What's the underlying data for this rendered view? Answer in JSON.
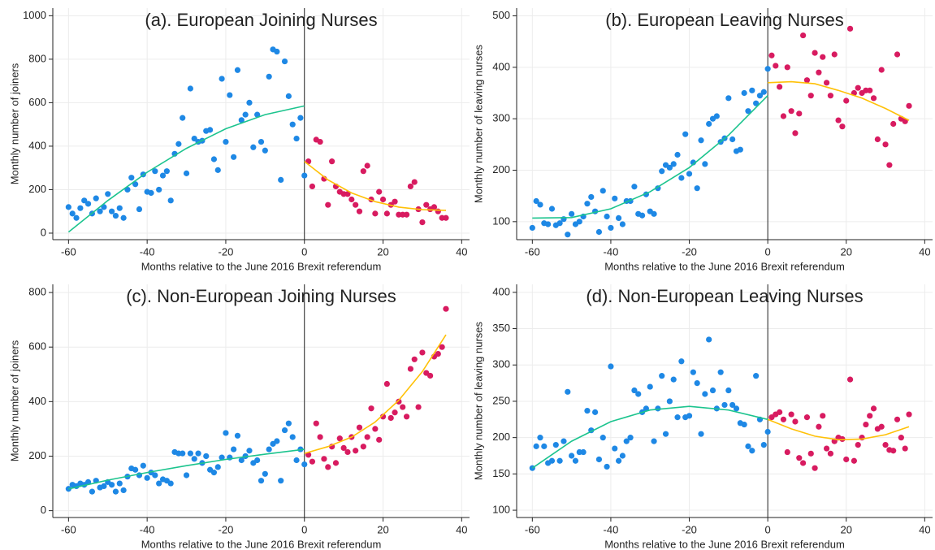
{
  "chart_data": [
    {
      "type": "scatter",
      "title": "(a). European Joining Nurses",
      "xlabel": "Months relative to the June 2016 Brexit referendum",
      "ylabel": "Monthly number of joiners",
      "xlim": [
        -64,
        42
      ],
      "xticks": [
        -60,
        -40,
        -20,
        0,
        20,
        40
      ],
      "ylim": [
        -30,
        1035
      ],
      "yticks": [
        0,
        200,
        400,
        600,
        800,
        1000
      ],
      "grid": true,
      "vline": 0,
      "vline_color": "#222",
      "series": [
        {
          "type": "scatter",
          "color": "#1e88e5",
          "x": [
            -60,
            -59,
            -58,
            -57,
            -56,
            -55,
            -54,
            -53,
            -52,
            -51,
            -50,
            -49,
            -48,
            -47,
            -46,
            -45,
            -44,
            -43,
            -42,
            -41,
            -40,
            -39,
            -38,
            -37,
            -36,
            -35,
            -34,
            -33,
            -32,
            -31,
            -30,
            -29,
            -28,
            -27,
            -26,
            -25,
            -24,
            -23,
            -22,
            -21,
            -20,
            -19,
            -18,
            -17,
            -16,
            -15,
            -14,
            -13,
            -12,
            -11,
            -10,
            -9,
            -8,
            -7,
            -6,
            -5,
            -4,
            -3,
            -2,
            -1,
            0
          ],
          "values": [
            120,
            90,
            70,
            115,
            150,
            135,
            90,
            160,
            100,
            120,
            180,
            100,
            80,
            115,
            70,
            200,
            255,
            225,
            110,
            270,
            190,
            185,
            285,
            200,
            265,
            285,
            150,
            365,
            410,
            530,
            275,
            665,
            435,
            420,
            425,
            470,
            475,
            340,
            290,
            710,
            420,
            635,
            350,
            750,
            520,
            545,
            600,
            395,
            545,
            420,
            380,
            720,
            845,
            835,
            245,
            790,
            630,
            500,
            435,
            530,
            265
          ]
        },
        {
          "type": "scatter",
          "color": "#d81b60",
          "x": [
            1,
            2,
            3,
            4,
            5,
            6,
            7,
            8,
            9,
            10,
            11,
            12,
            13,
            14,
            15,
            16,
            17,
            18,
            19,
            20,
            21,
            22,
            23,
            24,
            25,
            26,
            27,
            28,
            29,
            30,
            31,
            32,
            33,
            34,
            35,
            36
          ],
          "values": [
            330,
            215,
            430,
            420,
            250,
            130,
            330,
            215,
            190,
            180,
            180,
            155,
            130,
            100,
            285,
            310,
            155,
            90,
            190,
            155,
            90,
            130,
            145,
            85,
            85,
            85,
            215,
            235,
            110,
            50,
            130,
            110,
            120,
            100,
            70,
            70
          ]
        },
        {
          "type": "line",
          "color": "#1cc48e",
          "x": [
            -60,
            -50,
            -40,
            -30,
            -20,
            -10,
            0
          ],
          "values": [
            5,
            150,
            280,
            390,
            480,
            545,
            585
          ]
        },
        {
          "type": "line",
          "color": "#ffc107",
          "x": [
            0,
            6,
            12,
            18,
            24,
            30,
            36
          ],
          "values": [
            330,
            245,
            185,
            145,
            120,
            108,
            105
          ]
        }
      ]
    },
    {
      "type": "scatter",
      "title": "(b). European Leaving Nurses",
      "xlabel": "Months relative to the June 2016 Brexit referendum",
      "ylabel": "Monthly number of leaving nurses",
      "xlim": [
        -64,
        42
      ],
      "xticks": [
        -60,
        -40,
        -20,
        0,
        20,
        40
      ],
      "ylim": [
        65,
        515
      ],
      "yticks": [
        100,
        200,
        300,
        400,
        500
      ],
      "grid": true,
      "vline": 0,
      "vline_color": "#222",
      "series": [
        {
          "type": "scatter",
          "color": "#1e88e5",
          "x": [
            -60,
            -59,
            -58,
            -57,
            -56,
            -55,
            -54,
            -53,
            -52,
            -51,
            -50,
            -49,
            -48,
            -47,
            -46,
            -45,
            -44,
            -43,
            -42,
            -41,
            -40,
            -39,
            -38,
            -37,
            -36,
            -35,
            -34,
            -33,
            -32,
            -31,
            -30,
            -29,
            -28,
            -27,
            -26,
            -25,
            -24,
            -23,
            -22,
            -21,
            -20,
            -19,
            -18,
            -17,
            -16,
            -15,
            -14,
            -13,
            -12,
            -11,
            -10,
            -9,
            -8,
            -7,
            -6,
            -5,
            -4,
            -3,
            -2,
            -1,
            0
          ],
          "values": [
            88,
            140,
            133,
            97,
            95,
            125,
            93,
            97,
            105,
            75,
            115,
            95,
            100,
            110,
            135,
            148,
            120,
            80,
            160,
            110,
            88,
            145,
            107,
            95,
            140,
            140,
            168,
            115,
            112,
            153,
            120,
            115,
            165,
            198,
            210,
            205,
            212,
            230,
            185,
            270,
            193,
            215,
            165,
            258,
            212,
            290,
            300,
            305,
            255,
            262,
            340,
            260,
            237,
            240,
            350,
            315,
            355,
            330,
            345,
            352,
            397
          ]
        },
        {
          "type": "scatter",
          "color": "#d81b60",
          "x": [
            1,
            2,
            3,
            4,
            5,
            6,
            7,
            8,
            9,
            10,
            11,
            12,
            13,
            14,
            15,
            16,
            17,
            18,
            19,
            20,
            21,
            22,
            23,
            24,
            25,
            26,
            27,
            28,
            29,
            30,
            31,
            32,
            33,
            34,
            35,
            36
          ],
          "values": [
            423,
            403,
            362,
            305,
            400,
            315,
            272,
            310,
            462,
            375,
            345,
            428,
            390,
            420,
            370,
            345,
            425,
            297,
            285,
            335,
            475,
            350,
            360,
            350,
            355,
            355,
            340,
            260,
            395,
            250,
            210,
            290,
            425,
            300,
            295,
            325
          ]
        },
        {
          "type": "line",
          "color": "#1cc48e",
          "x": [
            -60,
            -50,
            -40,
            -30,
            -20,
            -10,
            0
          ],
          "values": [
            107,
            108,
            125,
            158,
            205,
            268,
            345
          ]
        },
        {
          "type": "line",
          "color": "#ffc107",
          "x": [
            0,
            6,
            12,
            18,
            24,
            30,
            36
          ],
          "values": [
            370,
            372,
            368,
            355,
            340,
            320,
            297
          ]
        }
      ]
    },
    {
      "type": "scatter",
      "title": "(c). Non-European Joining Nurses",
      "xlabel": "Months relative to the June 2016 Brexit referendum",
      "ylabel": "Monthly number of joiners",
      "xlim": [
        -64,
        42
      ],
      "xticks": [
        -60,
        -40,
        -20,
        0,
        20,
        40
      ],
      "ylim": [
        -25,
        830
      ],
      "yticks": [
        0,
        200,
        400,
        600,
        800
      ],
      "grid": true,
      "vline": 0,
      "vline_color": "#222",
      "series": [
        {
          "type": "scatter",
          "color": "#1e88e5",
          "x": [
            -60,
            -59,
            -58,
            -57,
            -56,
            -55,
            -54,
            -53,
            -52,
            -51,
            -50,
            -49,
            -48,
            -47,
            -46,
            -45,
            -44,
            -43,
            -42,
            -41,
            -40,
            -39,
            -38,
            -37,
            -36,
            -35,
            -34,
            -33,
            -32,
            -31,
            -30,
            -29,
            -28,
            -27,
            -26,
            -25,
            -24,
            -23,
            -22,
            -21,
            -20,
            -19,
            -18,
            -17,
            -16,
            -15,
            -14,
            -13,
            -12,
            -11,
            -10,
            -9,
            -8,
            -7,
            -6,
            -5,
            -4,
            -3,
            -2,
            -1,
            0
          ],
          "values": [
            80,
            95,
            90,
            100,
            95,
            105,
            70,
            110,
            85,
            90,
            105,
            95,
            70,
            100,
            75,
            125,
            155,
            150,
            130,
            165,
            120,
            140,
            130,
            100,
            115,
            110,
            100,
            215,
            210,
            210,
            130,
            210,
            190,
            210,
            175,
            200,
            150,
            140,
            160,
            195,
            285,
            195,
            225,
            275,
            185,
            200,
            220,
            175,
            185,
            110,
            135,
            225,
            245,
            255,
            110,
            295,
            320,
            270,
            185,
            225,
            170
          ]
        },
        {
          "type": "scatter",
          "color": "#d81b60",
          "x": [
            1,
            2,
            3,
            4,
            5,
            6,
            7,
            8,
            9,
            10,
            11,
            12,
            13,
            14,
            15,
            16,
            17,
            18,
            19,
            20,
            21,
            22,
            23,
            24,
            25,
            26,
            27,
            28,
            29,
            30,
            31,
            32,
            33,
            34,
            35,
            36
          ],
          "values": [
            205,
            180,
            320,
            270,
            190,
            160,
            235,
            175,
            265,
            230,
            215,
            270,
            220,
            305,
            235,
            270,
            375,
            300,
            260,
            345,
            465,
            340,
            360,
            400,
            380,
            345,
            520,
            555,
            380,
            580,
            505,
            495,
            565,
            575,
            600,
            740
          ]
        },
        {
          "type": "line",
          "color": "#1cc48e",
          "x": [
            -60,
            -50,
            -40,
            -30,
            -20,
            -10,
            0
          ],
          "values": [
            80,
            112,
            140,
            165,
            188,
            207,
            225
          ]
        },
        {
          "type": "line",
          "color": "#ffc107",
          "x": [
            0,
            6,
            12,
            18,
            24,
            30,
            36
          ],
          "values": [
            210,
            235,
            270,
            325,
            405,
            510,
            645
          ]
        }
      ]
    },
    {
      "type": "scatter",
      "title": "(d). Non-European Leaving Nurses",
      "xlabel": "Months relative to the June 2016 Brexit referendum",
      "ylabel": "Monthly number of leaving nurses",
      "xlim": [
        -64,
        42
      ],
      "xticks": [
        -60,
        -40,
        -20,
        0,
        20,
        40
      ],
      "ylim": [
        90,
        411
      ],
      "yticks": [
        100,
        150,
        200,
        250,
        300,
        350,
        400
      ],
      "grid": true,
      "vline": 0,
      "vline_color": "#222",
      "series": [
        {
          "type": "scatter",
          "color": "#1e88e5",
          "x": [
            -60,
            -59,
            -58,
            -57,
            -56,
            -55,
            -54,
            -53,
            -52,
            -51,
            -50,
            -49,
            -48,
            -47,
            -46,
            -45,
            -44,
            -43,
            -42,
            -41,
            -40,
            -39,
            -38,
            -37,
            -36,
            -35,
            -34,
            -33,
            -32,
            -31,
            -30,
            -29,
            -28,
            -27,
            -26,
            -25,
            -24,
            -23,
            -22,
            -21,
            -20,
            -19,
            -18,
            -17,
            -16,
            -15,
            -14,
            -13,
            -12,
            -11,
            -10,
            -9,
            -8,
            -7,
            -6,
            -5,
            -4,
            -3,
            -2,
            -1,
            0
          ],
          "values": [
            158,
            188,
            200,
            188,
            165,
            168,
            190,
            168,
            195,
            263,
            175,
            168,
            180,
            180,
            237,
            210,
            235,
            170,
            200,
            160,
            298,
            185,
            168,
            175,
            195,
            200,
            265,
            260,
            235,
            240,
            270,
            195,
            240,
            285,
            205,
            250,
            280,
            228,
            305,
            228,
            230,
            290,
            275,
            205,
            260,
            335,
            265,
            240,
            290,
            245,
            265,
            245,
            240,
            220,
            218,
            188,
            182,
            285,
            225,
            190,
            208
          ]
        },
        {
          "type": "scatter",
          "color": "#d81b60",
          "x": [
            1,
            2,
            3,
            4,
            5,
            6,
            7,
            8,
            9,
            10,
            11,
            12,
            13,
            14,
            15,
            16,
            17,
            18,
            19,
            20,
            21,
            22,
            23,
            24,
            25,
            26,
            27,
            28,
            29,
            30,
            31,
            32,
            33,
            34,
            35,
            36
          ],
          "values": [
            228,
            232,
            235,
            225,
            180,
            232,
            222,
            172,
            165,
            228,
            178,
            158,
            215,
            230,
            185,
            178,
            195,
            200,
            198,
            170,
            280,
            168,
            190,
            200,
            218,
            230,
            240,
            212,
            215,
            190,
            183,
            182,
            225,
            200,
            185,
            232
          ]
        },
        {
          "type": "line",
          "color": "#1cc48e",
          "x": [
            -60,
            -50,
            -40,
            -30,
            -20,
            -10,
            0
          ],
          "values": [
            158,
            195,
            222,
            238,
            243,
            238,
            225
          ]
        },
        {
          "type": "line",
          "color": "#ffc107",
          "x": [
            0,
            6,
            12,
            18,
            24,
            30,
            36
          ],
          "values": [
            225,
            212,
            202,
            197,
            198,
            204,
            215
          ]
        }
      ]
    }
  ]
}
